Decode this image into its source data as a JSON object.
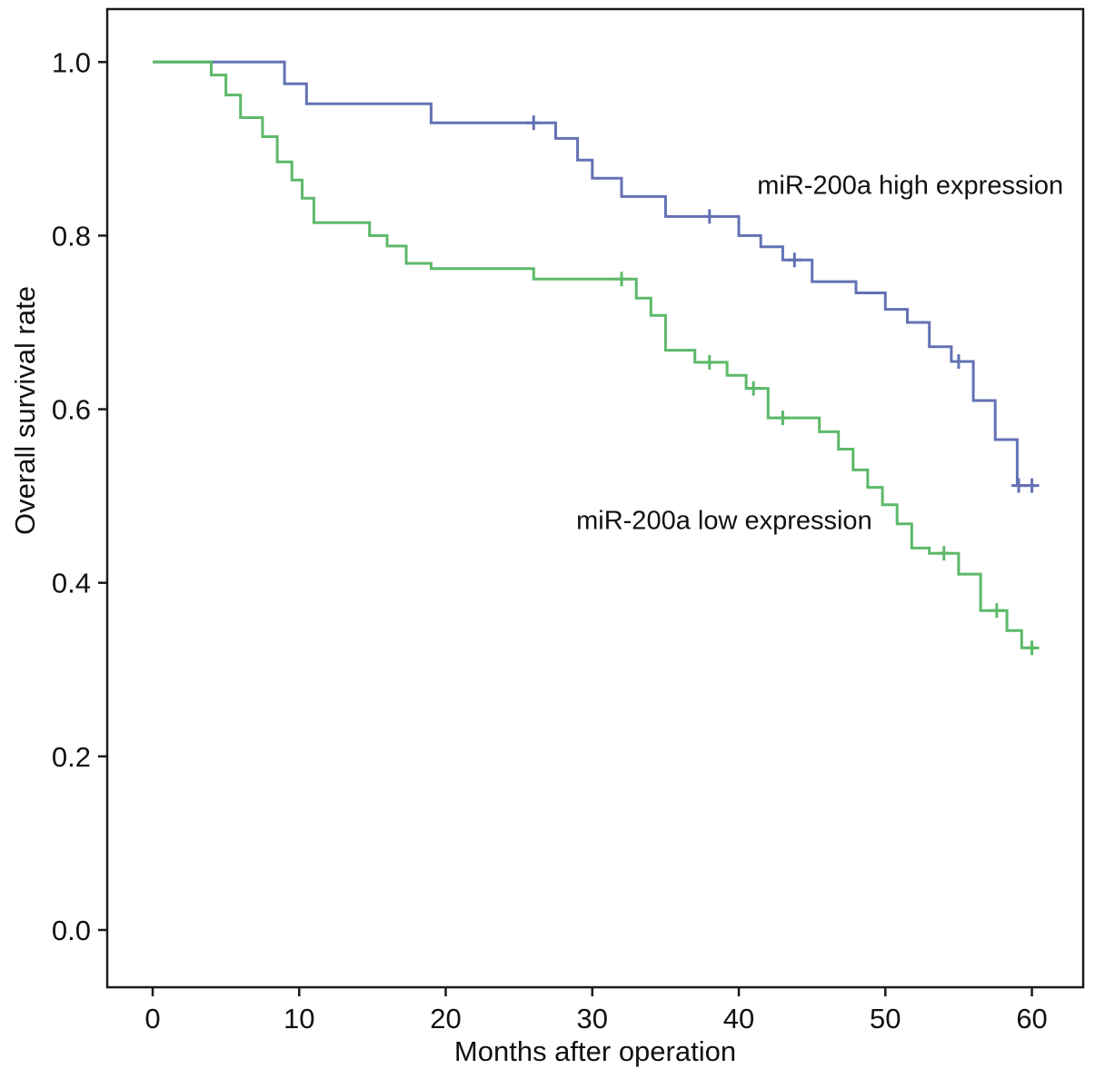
{
  "figure": {
    "title": "",
    "background": "#ffffff",
    "frame_color": "#1a1a1a"
  },
  "chart_data": {
    "type": "line",
    "subtype": "kaplan-meier-step",
    "title": "",
    "xlabel": "Months after operation",
    "ylabel": "Overall survival rate",
    "xlim": [
      -3.1,
      63.5
    ],
    "ylim": [
      -0.066,
      1.061
    ],
    "x_ticks": [
      0,
      10,
      20,
      30,
      40,
      50,
      60
    ],
    "x_tick_labels": [
      "0",
      "10",
      "20",
      "30",
      "40",
      "50",
      "60"
    ],
    "y_ticks": [
      0.0,
      0.2,
      0.4,
      0.6,
      0.8,
      1.0
    ],
    "y_tick_labels": [
      "0.0",
      "0.2",
      "0.4",
      "0.6",
      "0.8",
      "1.0"
    ],
    "grid": false,
    "legend_position": "in-plot-annotations",
    "series": [
      {
        "name": "miR-200a high expression",
        "color": "#6372b4",
        "steps": [
          [
            0,
            1.0
          ],
          [
            9,
            0.975
          ],
          [
            10.5,
            0.952
          ],
          [
            19,
            0.93
          ],
          [
            27.5,
            0.912
          ],
          [
            29,
            0.887
          ],
          [
            30,
            0.866
          ],
          [
            32,
            0.845
          ],
          [
            35,
            0.822
          ],
          [
            40,
            0.8
          ],
          [
            41.5,
            0.787
          ],
          [
            43,
            0.772
          ],
          [
            45,
            0.747
          ],
          [
            48,
            0.734
          ],
          [
            50,
            0.715
          ],
          [
            51.5,
            0.7
          ],
          [
            53,
            0.672
          ],
          [
            54.5,
            0.655
          ],
          [
            56,
            0.61
          ],
          [
            57.5,
            0.565
          ],
          [
            59,
            0.512
          ],
          [
            60.3,
            0.512
          ]
        ],
        "censors": [
          [
            26,
            0.93
          ],
          [
            38,
            0.822
          ],
          [
            43.8,
            0.772
          ],
          [
            55,
            0.655
          ],
          [
            59.1,
            0.512
          ],
          [
            60,
            0.512
          ]
        ],
        "label": {
          "text": "miR-200a high expression",
          "x": 51.7,
          "y": 0.848
        }
      },
      {
        "name": "miR-200a low expression",
        "color": "#5cb968",
        "steps": [
          [
            0,
            1.0
          ],
          [
            4,
            0.985
          ],
          [
            5,
            0.962
          ],
          [
            6,
            0.936
          ],
          [
            7.5,
            0.914
          ],
          [
            8.5,
            0.885
          ],
          [
            9.5,
            0.864
          ],
          [
            10.2,
            0.843
          ],
          [
            11,
            0.815
          ],
          [
            14.8,
            0.8
          ],
          [
            16,
            0.788
          ],
          [
            17.3,
            0.768
          ],
          [
            19,
            0.762
          ],
          [
            26,
            0.75
          ],
          [
            33,
            0.728
          ],
          [
            34,
            0.708
          ],
          [
            35,
            0.668
          ],
          [
            37,
            0.654
          ],
          [
            39.2,
            0.639
          ],
          [
            40.5,
            0.624
          ],
          [
            42,
            0.59
          ],
          [
            45.5,
            0.574
          ],
          [
            46.8,
            0.554
          ],
          [
            47.8,
            0.53
          ],
          [
            48.8,
            0.51
          ],
          [
            49.8,
            0.49
          ],
          [
            50.8,
            0.468
          ],
          [
            51.8,
            0.44
          ],
          [
            53,
            0.434
          ],
          [
            55,
            0.41
          ],
          [
            56.5,
            0.368
          ],
          [
            58.3,
            0.345
          ],
          [
            59.3,
            0.325
          ],
          [
            60.3,
            0.325
          ]
        ],
        "censors": [
          [
            32,
            0.75
          ],
          [
            38,
            0.654
          ],
          [
            41,
            0.624
          ],
          [
            43,
            0.59
          ],
          [
            54,
            0.434
          ],
          [
            57.6,
            0.368
          ],
          [
            60,
            0.325
          ]
        ],
        "label": {
          "text": "miR-200a low expression",
          "x": 39,
          "y": 0.462
        }
      }
    ]
  }
}
